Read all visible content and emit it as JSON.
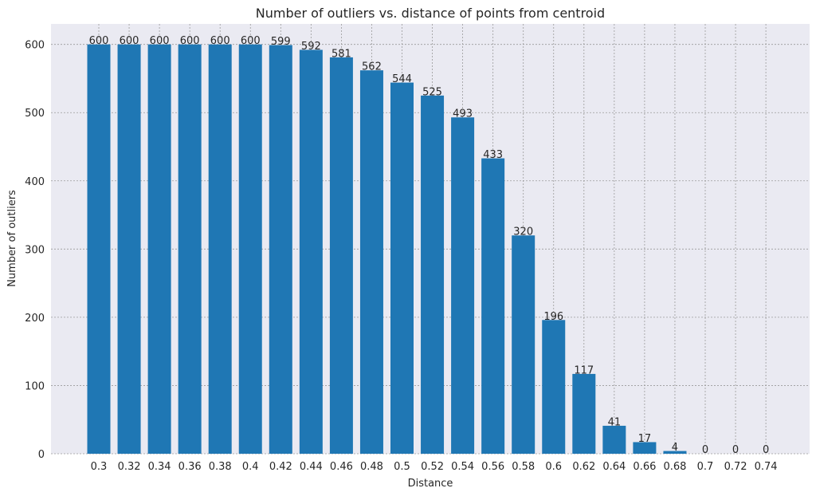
{
  "chart_data": {
    "type": "bar",
    "title": "Number of outliers vs. distance of points from centroid",
    "xlabel": "Distance",
    "ylabel": "Number of outliers",
    "categories": [
      "0.3",
      "0.32",
      "0.34",
      "0.36",
      "0.38",
      "0.4",
      "0.42",
      "0.44",
      "0.46",
      "0.48",
      "0.5",
      "0.52",
      "0.54",
      "0.56",
      "0.58",
      "0.6",
      "0.62",
      "0.64",
      "0.66",
      "0.68",
      "0.7",
      "0.72",
      "0.74"
    ],
    "values": [
      600,
      600,
      600,
      600,
      600,
      600,
      599,
      592,
      581,
      562,
      544,
      525,
      493,
      433,
      320,
      196,
      117,
      41,
      17,
      4,
      0,
      0,
      0
    ],
    "ylim": [
      0,
      630
    ],
    "yticks": [
      0,
      100,
      200,
      300,
      400,
      500,
      600
    ],
    "grid": true,
    "legend": "none",
    "colors": {
      "bar": "#1f77b4",
      "background": "#eaeaf2",
      "grid": "#9a9a9a",
      "text": "#262626"
    }
  }
}
